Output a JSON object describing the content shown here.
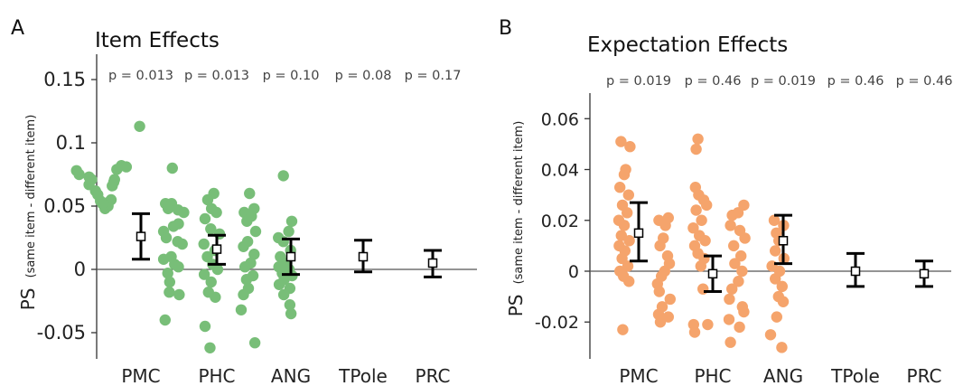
{
  "chart_data": [
    {
      "panel_letter": "A",
      "title": "Item Effects",
      "type": "scatter",
      "ylabel_main": "PS",
      "ylabel_sub": "(same item - different item)",
      "ylim": [
        -0.07,
        0.17
      ],
      "yticks": [
        0.15,
        0.1,
        0.05,
        0,
        -0.05
      ],
      "ytick_labels": [
        "0.15",
        "0.1",
        "0.05",
        "0",
        "-0.05"
      ],
      "categories": [
        "PMC",
        "PHC",
        "ANG",
        "TPole",
        "PRC"
      ],
      "p_values": [
        "p = 0.013",
        "p = 0.013",
        "p = 0.10",
        "p = 0.08",
        "p = 0.17"
      ],
      "point_color": "#78be78",
      "means": [
        0.026,
        0.016,
        0.01,
        0.01,
        0.005
      ],
      "error_low": [
        0.008,
        0.004,
        -0.004,
        -0.002,
        -0.006
      ],
      "error_high": [
        0.044,
        0.027,
        0.024,
        0.023,
        0.015
      ],
      "points": [
        [
          [
            0.113,
            0.113
          ],
          [
            0.081,
            0.078
          ],
          [
            0.082,
            0.065
          ],
          [
            0.079,
            0.053
          ],
          [
            0.071,
            0.047
          ],
          [
            0.069,
            0.045
          ],
          [
            0.066,
            0.041
          ],
          [
            0.055,
            0.038
          ],
          [
            0.053,
            0.031
          ],
          [
            0.05,
            0.03
          ],
          [
            0.048,
            0.022
          ],
          [
            0.051,
            0.02
          ],
          [
            0.052,
            0.015
          ],
          [
            0.054,
            0.01
          ],
          [
            0.059,
            0.003
          ],
          [
            0.062,
            -0.003
          ],
          [
            0.071,
            -0.013
          ],
          [
            0.067,
            -0.02
          ],
          [
            0.073,
            -0.02
          ],
          [
            0.075,
            -0.046
          ],
          [
            0.078,
            -0.053
          ]
        ],
        [
          [
            0.08,
            0.199
          ],
          [
            0.052,
            0.181
          ],
          [
            0.052,
            0.197
          ],
          [
            0.048,
            0.188
          ],
          [
            0.047,
            0.214
          ],
          [
            0.045,
            0.229
          ],
          [
            0.036,
            0.215
          ],
          [
            0.034,
            0.202
          ],
          [
            0.03,
            0.176
          ],
          [
            0.025,
            0.183
          ],
          [
            0.022,
            0.213
          ],
          [
            0.02,
            0.225
          ],
          [
            0.01,
            0.196
          ],
          [
            0.008,
            0.176
          ],
          [
            0.004,
            0.205
          ],
          [
            0.002,
            0.215
          ],
          [
            -0.003,
            0.187
          ],
          [
            -0.01,
            0.192
          ],
          [
            -0.018,
            0.191
          ],
          [
            -0.02,
            0.217
          ],
          [
            -0.04,
            0.18
          ]
        ],
        [
          [
            0.06,
            0.308
          ],
          [
            0.055,
            0.292
          ],
          [
            0.048,
            0.302
          ],
          [
            0.045,
            0.315
          ],
          [
            0.04,
            0.285
          ],
          [
            0.032,
            0.3
          ],
          [
            0.028,
            0.323
          ],
          [
            0.02,
            0.282
          ],
          [
            0.015,
            0.311
          ],
          [
            0.01,
            0.291
          ],
          [
            0.004,
            0.305
          ],
          [
            0.0,
            0.318
          ],
          [
            -0.004,
            0.283
          ],
          [
            -0.01,
            0.301
          ],
          [
            -0.018,
            0.294
          ],
          [
            -0.022,
            0.312
          ],
          [
            -0.045,
            0.285
          ],
          [
            -0.062,
            0.298
          ]
        ],
        [
          [
            0.06,
            0.402
          ],
          [
            0.048,
            0.414
          ],
          [
            0.045,
            0.388
          ],
          [
            0.042,
            0.407
          ],
          [
            0.038,
            0.395
          ],
          [
            0.03,
            0.418
          ],
          [
            0.022,
            0.397
          ],
          [
            0.018,
            0.386
          ],
          [
            0.012,
            0.414
          ],
          [
            0.005,
            0.405
          ],
          [
            0.002,
            0.39
          ],
          [
            -0.005,
            0.411
          ],
          [
            -0.008,
            0.394
          ],
          [
            -0.015,
            0.399
          ],
          [
            -0.02,
            0.386
          ],
          [
            -0.032,
            0.38
          ],
          [
            -0.058,
            0.416
          ]
        ],
        [
          [
            0.074,
            0.491
          ],
          [
            0.038,
            0.513
          ],
          [
            0.03,
            0.505
          ],
          [
            0.025,
            0.478
          ],
          [
            0.022,
            0.491
          ],
          [
            0.015,
            0.51
          ],
          [
            0.01,
            0.483
          ],
          [
            0.005,
            0.5
          ],
          [
            0.002,
            0.479
          ],
          [
            0.0,
            0.506
          ],
          [
            -0.003,
            0.488
          ],
          [
            -0.005,
            0.514
          ],
          [
            -0.008,
            0.493
          ],
          [
            -0.012,
            0.48
          ],
          [
            -0.015,
            0.508
          ],
          [
            -0.02,
            0.492
          ],
          [
            -0.028,
            0.508
          ],
          [
            -0.035,
            0.511
          ]
        ]
      ]
    },
    {
      "panel_letter": "B",
      "title": "Expectation Effects",
      "type": "scatter",
      "ylabel_main": "PS",
      "ylabel_sub": "(same item - different item)",
      "ylim": [
        -0.035,
        0.07
      ],
      "yticks": [
        0.06,
        0.04,
        0.02,
        0,
        -0.02
      ],
      "ytick_labels": [
        "0.06",
        "0.04",
        "0.02",
        "0",
        "-0.02"
      ],
      "categories": [
        "PMC",
        "PHC",
        "ANG",
        "TPole",
        "PRC"
      ],
      "p_values": [
        "p = 0.019",
        "p = 0.46",
        "p = 0.019",
        "p = 0.46",
        "p = 0.46"
      ],
      "point_color": "#f5a46c",
      "means": [
        0.015,
        -0.001,
        0.012,
        0.0,
        -0.001
      ],
      "error_low": [
        0.004,
        -0.008,
        0.003,
        -0.006,
        -0.006
      ],
      "error_high": [
        0.027,
        0.006,
        0.022,
        0.007,
        0.004
      ],
      "points": [
        [
          [
            0.051,
            0.086
          ],
          [
            0.049,
            0.111
          ],
          [
            0.04,
            0.099
          ],
          [
            0.038,
            0.095
          ],
          [
            0.033,
            0.083
          ],
          [
            0.03,
            0.107
          ],
          [
            0.026,
            0.09
          ],
          [
            0.023,
            0.103
          ],
          [
            0.02,
            0.08
          ],
          [
            0.018,
            0.095
          ],
          [
            0.014,
            0.087
          ],
          [
            0.012,
            0.109
          ],
          [
            0.01,
            0.081
          ],
          [
            0.008,
            0.097
          ],
          [
            0.005,
            0.089
          ],
          [
            0.002,
            0.105
          ],
          [
            0.0,
            0.083
          ],
          [
            -0.002,
            0.093
          ],
          [
            -0.004,
            0.108
          ],
          [
            -0.023,
            0.091
          ]
        ],
        [
          [
            0.021,
            0.217
          ],
          [
            0.02,
            0.191
          ],
          [
            0.018,
            0.209
          ],
          [
            0.013,
            0.203
          ],
          [
            0.01,
            0.194
          ],
          [
            0.006,
            0.215
          ],
          [
            0.003,
            0.22
          ],
          [
            0.0,
            0.207
          ],
          [
            -0.002,
            0.198
          ],
          [
            -0.005,
            0.187
          ],
          [
            -0.008,
            0.192
          ],
          [
            -0.011,
            0.222
          ],
          [
            -0.014,
            0.2
          ],
          [
            -0.017,
            0.19
          ],
          [
            -0.018,
            0.217
          ],
          [
            -0.02,
            0.195
          ]
        ],
        [
          [
            0.052,
            0.299
          ],
          [
            0.048,
            0.294
          ],
          [
            0.033,
            0.292
          ],
          [
            0.03,
            0.301
          ],
          [
            0.028,
            0.315
          ],
          [
            0.026,
            0.323
          ],
          [
            0.024,
            0.294
          ],
          [
            0.02,
            0.309
          ],
          [
            0.017,
            0.286
          ],
          [
            0.014,
            0.303
          ],
          [
            0.012,
            0.319
          ],
          [
            0.01,
            0.29
          ],
          [
            0.007,
            0.299
          ],
          [
            0.005,
            0.316
          ],
          [
            0.002,
            0.307
          ],
          [
            -0.007,
            0.313
          ],
          [
            -0.021,
            0.287
          ],
          [
            -0.021,
            0.326
          ],
          [
            -0.024,
            0.29
          ]
        ],
        [
          [
            0.026,
            0.426
          ],
          [
            0.023,
            0.41
          ],
          [
            0.022,
            0.394
          ],
          [
            0.018,
            0.389
          ],
          [
            0.016,
            0.415
          ],
          [
            0.013,
            0.429
          ],
          [
            0.01,
            0.398
          ],
          [
            0.006,
            0.418
          ],
          [
            0.003,
            0.401
          ],
          [
            0.0,
            0.421
          ],
          [
            -0.004,
            0.411
          ],
          [
            -0.007,
            0.393
          ],
          [
            -0.011,
            0.386
          ],
          [
            -0.014,
            0.422
          ],
          [
            -0.016,
            0.426
          ],
          [
            -0.019,
            0.385
          ],
          [
            -0.022,
            0.414
          ],
          [
            -0.028,
            0.389
          ]
        ],
        [
          [
            0.02,
            0.51
          ],
          [
            0.018,
            0.536
          ],
          [
            0.015,
            0.516
          ],
          [
            0.012,
            0.523
          ],
          [
            0.008,
            0.513
          ],
          [
            0.005,
            0.537
          ],
          [
            0.002,
            0.504
          ],
          [
            0.0,
            0.525
          ],
          [
            -0.003,
            0.513
          ],
          [
            -0.006,
            0.532
          ],
          [
            -0.01,
            0.522
          ],
          [
            -0.012,
            0.535
          ],
          [
            -0.018,
            0.517
          ],
          [
            -0.025,
            0.5
          ],
          [
            -0.03,
            0.531
          ]
        ]
      ]
    }
  ]
}
